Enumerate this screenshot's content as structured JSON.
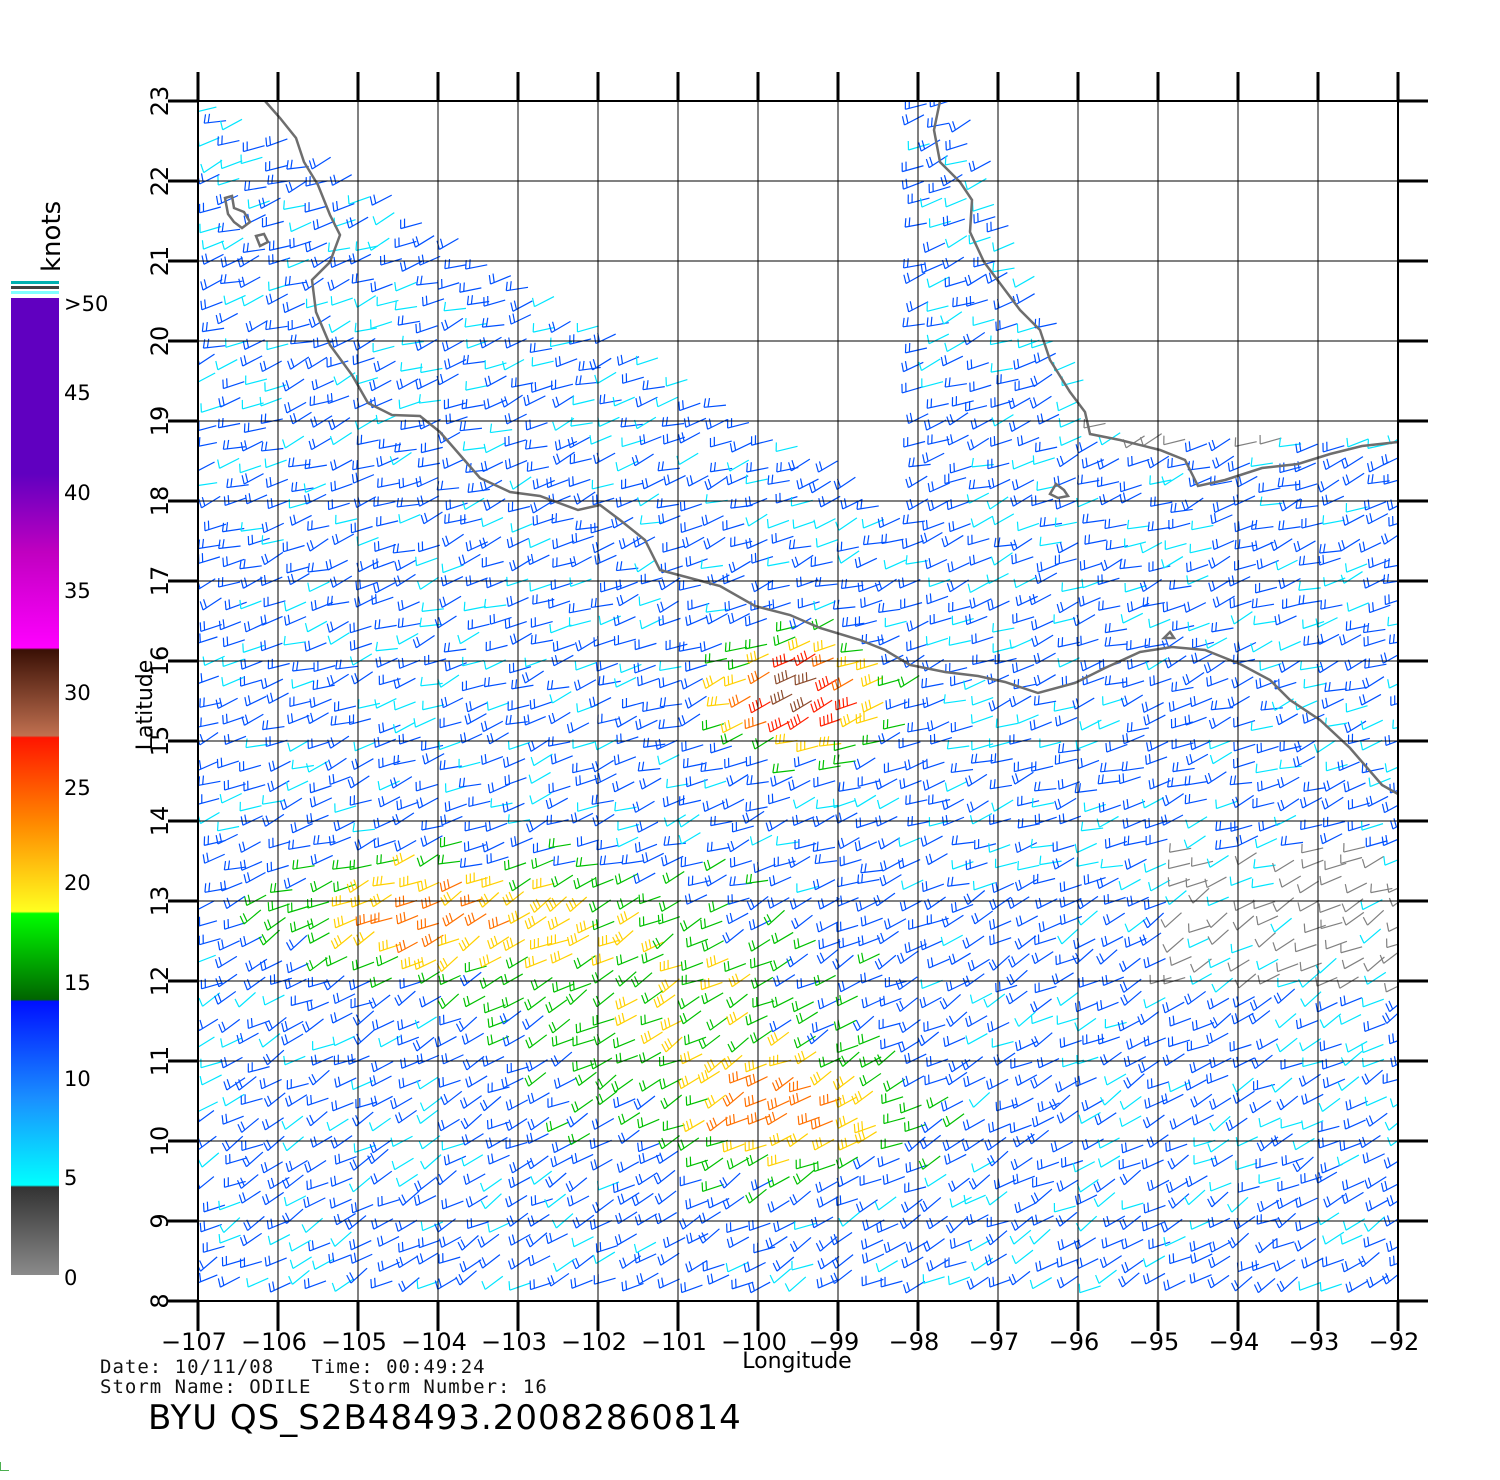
{
  "map": {
    "x_axis_title": "Longitude",
    "y_axis_title": "Latitude",
    "lon_ticks": [
      "-107",
      "-106",
      "-105",
      "-104",
      "-103",
      "-102",
      "-101",
      "-100",
      "-99",
      "-98",
      "-97",
      "-96",
      "-95",
      "-94",
      "-93",
      "-92"
    ],
    "lat_ticks": [
      "8",
      "9",
      "10",
      "11",
      "12",
      "13",
      "14",
      "15",
      "16",
      "17",
      "18",
      "19",
      "20",
      "21",
      "22",
      "23"
    ],
    "lon_range": [
      -107,
      -92
    ],
    "lat_range": [
      8,
      23
    ],
    "grid": true
  },
  "colorbar": {
    "title": "knots",
    "labels": [
      ">50",
      "45",
      "40",
      "35",
      "30",
      "25",
      "20",
      "15",
      "10",
      "5",
      "0"
    ],
    "colors": {
      "0-5": "#808080",
      "5-10": "#00e5ff",
      "10-15": "#0050ff",
      "15-20": "#00c000",
      "20-25": "#ffd000",
      "25-30": "#ff7000",
      "30-35": "#ff2000",
      "35-40": "#8b4a2b",
      "40-45": "#ff00ff",
      "45-50": "#8000c0"
    }
  },
  "info": {
    "date_line": "Date: 10/11/08   Time: 00:49:24",
    "storm_line": "Storm Name: ODILE   Storm Number: 16",
    "product_id": "BYU QS_S2B48493.20082860814"
  }
}
